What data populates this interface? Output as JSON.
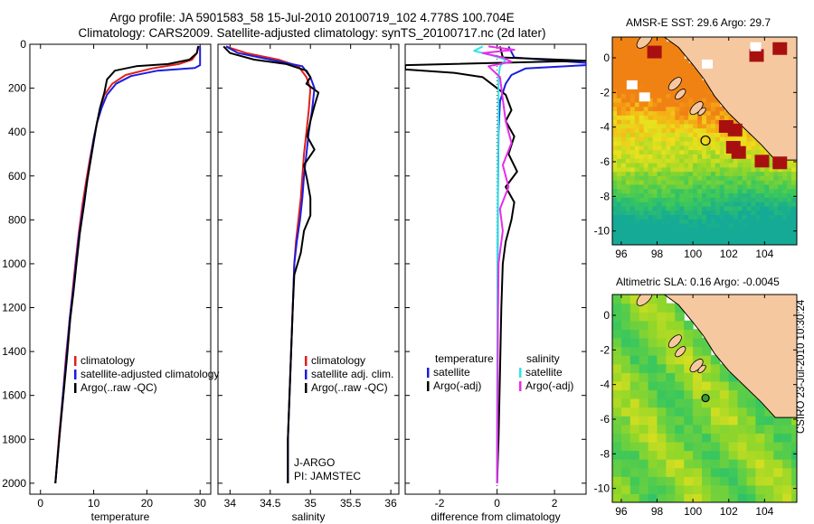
{
  "header": {
    "title_line1": "Argo profile: JA 5901583_58 15-Jul-2010 20100719_102 4.778S 100.704E",
    "title_line2": "Climatology: CARS2009. Satellite-adjusted climatology: synTS_20100717.nc (2d later)"
  },
  "credit": "CSIRO 23-Jul-2010 10:30:24",
  "colors": {
    "red": "#e0201c",
    "blue": "#1c1ce0",
    "black": "#000000",
    "cyan": "#2ee6e6",
    "magenta": "#e62ee6",
    "land": "#f6c8a0"
  },
  "chart_data": [
    {
      "type": "line",
      "id": "temperature",
      "xlabel": "temperature",
      "xlim": [
        -2,
        32
      ],
      "ylim": [
        0,
        2050
      ],
      "xticks": [
        0,
        10,
        20,
        30
      ],
      "yticks": [
        0,
        200,
        400,
        600,
        800,
        1000,
        1200,
        1400,
        1600,
        1800,
        2000
      ],
      "legend": [
        "climatology",
        "satellite-adjusted climatology",
        "Argo(..raw -QC)"
      ],
      "series": [
        {
          "name": "climatology",
          "color": "red",
          "points": [
            [
              29.6,
              10
            ],
            [
              29.4,
              40
            ],
            [
              28.5,
              70
            ],
            [
              26,
              90
            ],
            [
              21,
              110
            ],
            [
              16,
              140
            ],
            [
              13.5,
              180
            ],
            [
              12,
              230
            ],
            [
              11.3,
              290
            ],
            [
              10.6,
              360
            ],
            [
              10,
              430
            ],
            [
              9.3,
              520
            ],
            [
              8.6,
              620
            ],
            [
              7.9,
              730
            ],
            [
              7.2,
              860
            ],
            [
              6.6,
              990
            ],
            [
              6,
              1130
            ],
            [
              5.5,
              1250
            ],
            [
              4.8,
              1420
            ],
            [
              4.2,
              1600
            ],
            [
              3.5,
              1780
            ],
            [
              2.8,
              2000
            ]
          ]
        },
        {
          "name": "satellite-adjusted climatology",
          "color": "blue",
          "points": [
            [
              30,
              10
            ],
            [
              30,
              60
            ],
            [
              30,
              95
            ],
            [
              29,
              108
            ],
            [
              22,
              120
            ],
            [
              17,
              145
            ],
            [
              14.2,
              180
            ],
            [
              12.5,
              230
            ],
            [
              11.5,
              290
            ],
            [
              10.6,
              360
            ],
            [
              10,
              430
            ],
            [
              9.4,
              520
            ],
            [
              8.8,
              620
            ],
            [
              8.1,
              730
            ],
            [
              7.3,
              860
            ],
            [
              6.7,
              990
            ],
            [
              6.1,
              1130
            ],
            [
              5.5,
              1250
            ],
            [
              4.9,
              1420
            ],
            [
              4.2,
              1600
            ],
            [
              3.6,
              1780
            ],
            [
              2.8,
              2000
            ]
          ]
        },
        {
          "name": "Argo(..raw -QC)",
          "color": "black",
          "points": [
            [
              29.7,
              8
            ],
            [
              29.4,
              40
            ],
            [
              28,
              70
            ],
            [
              24,
              90
            ],
            [
              18,
              100
            ],
            [
              14,
              120
            ],
            [
              12.5,
              160
            ],
            [
              12,
              220
            ],
            [
              11.2,
              290
            ],
            [
              10.6,
              360
            ],
            [
              10.1,
              430
            ],
            [
              9.5,
              520
            ],
            [
              8.8,
              620
            ],
            [
              8.2,
              730
            ],
            [
              7.4,
              860
            ],
            [
              6.8,
              990
            ],
            [
              6.2,
              1130
            ],
            [
              5.6,
              1250
            ],
            [
              5,
              1420
            ],
            [
              4.3,
              1600
            ],
            [
              3.6,
              1780
            ],
            [
              2.8,
              2000
            ]
          ]
        }
      ]
    },
    {
      "type": "line",
      "id": "salinity",
      "xlabel": "salinity",
      "xlim": [
        33.85,
        36.1
      ],
      "ylim": [
        0,
        2050
      ],
      "xticks": [
        34,
        34.5,
        35,
        35.5,
        36
      ],
      "legend": [
        "climatology",
        "satellite adj. clim.",
        "Argo(..raw -QC)"
      ],
      "annotations": [
        "J-ARGO",
        "PI: JAMSTEC"
      ],
      "series": [
        {
          "name": "climatology",
          "color": "red",
          "points": [
            [
              33.95,
              10
            ],
            [
              34.2,
              40
            ],
            [
              34.6,
              70
            ],
            [
              34.85,
              100
            ],
            [
              34.95,
              150
            ],
            [
              35.0,
              200
            ],
            [
              34.98,
              300
            ],
            [
              34.95,
              400
            ],
            [
              34.92,
              500
            ],
            [
              34.9,
              600
            ],
            [
              34.88,
              700
            ],
            [
              34.85,
              800
            ],
            [
              34.82,
              900
            ],
            [
              34.8,
              1000
            ],
            [
              34.78,
              1200
            ],
            [
              34.76,
              1400
            ],
            [
              34.74,
              1600
            ],
            [
              34.72,
              1800
            ],
            [
              34.72,
              2000
            ]
          ]
        },
        {
          "name": "satellite adj. clim.",
          "color": "blue",
          "points": [
            [
              33.95,
              10
            ],
            [
              34.1,
              40
            ],
            [
              34.5,
              70
            ],
            [
              34.9,
              100
            ],
            [
              35.0,
              150
            ],
            [
              35.05,
              200
            ],
            [
              35.02,
              300
            ],
            [
              34.98,
              400
            ],
            [
              34.95,
              500
            ],
            [
              34.92,
              600
            ],
            [
              34.9,
              700
            ],
            [
              34.87,
              800
            ],
            [
              34.83,
              900
            ],
            [
              34.8,
              1000
            ],
            [
              34.78,
              1200
            ],
            [
              34.76,
              1400
            ],
            [
              34.74,
              1600
            ],
            [
              34.72,
              1800
            ],
            [
              34.72,
              2000
            ]
          ]
        },
        {
          "name": "Argo(..raw -QC)",
          "color": "black",
          "points": [
            [
              33.92,
              10
            ],
            [
              34.0,
              40
            ],
            [
              34.3,
              70
            ],
            [
              34.7,
              90
            ],
            [
              34.95,
              120
            ],
            [
              35.0,
              150
            ],
            [
              34.95,
              180
            ],
            [
              35.1,
              220
            ],
            [
              35.05,
              280
            ],
            [
              35.0,
              350
            ],
            [
              34.96,
              420
            ],
            [
              35.05,
              480
            ],
            [
              34.92,
              550
            ],
            [
              34.96,
              620
            ],
            [
              35.0,
              700
            ],
            [
              35.0,
              780
            ],
            [
              34.92,
              850
            ],
            [
              34.88,
              950
            ],
            [
              34.8,
              1050
            ],
            [
              34.78,
              1200
            ],
            [
              34.76,
              1400
            ],
            [
              34.74,
              1600
            ],
            [
              34.72,
              1800
            ],
            [
              34.72,
              2000
            ]
          ]
        }
      ]
    },
    {
      "type": "line",
      "id": "difference",
      "xlabel": "difference from climatology",
      "xlim": [
        -3.2,
        3.1
      ],
      "ylim": [
        0,
        2050
      ],
      "xticks": [
        -2,
        0,
        2
      ],
      "legend_left_title": "temperature",
      "legend_right_title": "salinity",
      "legend": [
        "satellite",
        "Argo(-adj)",
        "satellite",
        "Argo(-adj)"
      ],
      "series": [
        {
          "name": "temperature satellite",
          "color": "blue",
          "points": [
            [
              0.4,
              10
            ],
            [
              0.6,
              60
            ],
            [
              3.1,
              85
            ],
            [
              3.1,
              95
            ],
            [
              1.0,
              110
            ],
            [
              0.5,
              140
            ],
            [
              0.3,
              180
            ],
            [
              0.1,
              260
            ],
            [
              0.05,
              400
            ],
            [
              0.03,
              700
            ],
            [
              0.02,
              1000
            ],
            [
              0.01,
              1500
            ],
            [
              0,
              2000
            ]
          ]
        },
        {
          "name": "temperature Argo(-adj)",
          "color": "black",
          "points": [
            [
              0.1,
              10
            ],
            [
              0.2,
              60
            ],
            [
              3.1,
              75
            ],
            [
              -3.2,
              95
            ],
            [
              -3.2,
              115
            ],
            [
              -1.5,
              130
            ],
            [
              -0.5,
              150
            ],
            [
              -0.2,
              180
            ],
            [
              0.3,
              230
            ],
            [
              0.5,
              300
            ],
            [
              0.3,
              350
            ],
            [
              0.6,
              420
            ],
            [
              0.4,
              500
            ],
            [
              0.7,
              580
            ],
            [
              0.3,
              650
            ],
            [
              0.6,
              720
            ],
            [
              0.5,
              800
            ],
            [
              0.3,
              900
            ],
            [
              0.2,
              1000
            ],
            [
              0.15,
              1200
            ],
            [
              0.1,
              1500
            ],
            [
              0.05,
              1800
            ],
            [
              0,
              2000
            ]
          ]
        },
        {
          "name": "salinity satellite",
          "color": "cyan",
          "points": [
            [
              -0.5,
              10
            ],
            [
              -0.8,
              30
            ],
            [
              -0.2,
              50
            ],
            [
              0.3,
              70
            ],
            [
              0.1,
              100
            ],
            [
              0.05,
              150
            ],
            [
              0.05,
              300
            ],
            [
              0.03,
              600
            ],
            [
              0.02,
              1000
            ],
            [
              0.01,
              1500
            ],
            [
              0,
              2000
            ]
          ]
        },
        {
          "name": "salinity Argo(-adj)",
          "color": "magenta",
          "points": [
            [
              -0.3,
              10
            ],
            [
              0.6,
              25
            ],
            [
              -0.5,
              40
            ],
            [
              0.2,
              60
            ],
            [
              0.5,
              80
            ],
            [
              -0.3,
              100
            ],
            [
              0.1,
              150
            ],
            [
              0.2,
              250
            ],
            [
              0.3,
              350
            ],
            [
              0.5,
              450
            ],
            [
              0.2,
              550
            ],
            [
              0.4,
              650
            ],
            [
              0.1,
              750
            ],
            [
              0.2,
              850
            ],
            [
              0.05,
              1000
            ],
            [
              0.03,
              1300
            ],
            [
              0.02,
              1600
            ],
            [
              0,
              2000
            ]
          ]
        }
      ]
    },
    {
      "type": "heatmap",
      "id": "sst_map",
      "title": "AMSR-E SST: 29.6 Argo: 29.7",
      "xlim": [
        95.5,
        105.8
      ],
      "ylim": [
        -10.8,
        1.2
      ],
      "xticks": [
        96,
        98,
        100,
        102,
        104
      ],
      "yticks": [
        0,
        -2,
        -4,
        -6,
        -8,
        -10
      ],
      "argo_position": [
        100.704,
        -4.778
      ]
    },
    {
      "type": "heatmap",
      "id": "sla_map",
      "title": "Altimetric SLA: 0.16 Argo: -0.0045",
      "xlim": [
        95.5,
        105.8
      ],
      "ylim": [
        -10.8,
        1.2
      ],
      "xticks": [
        96,
        98,
        100,
        102,
        104
      ],
      "yticks": [
        0,
        -2,
        -4,
        -6,
        -8,
        -10
      ],
      "argo_position": [
        100.704,
        -4.778
      ]
    }
  ]
}
